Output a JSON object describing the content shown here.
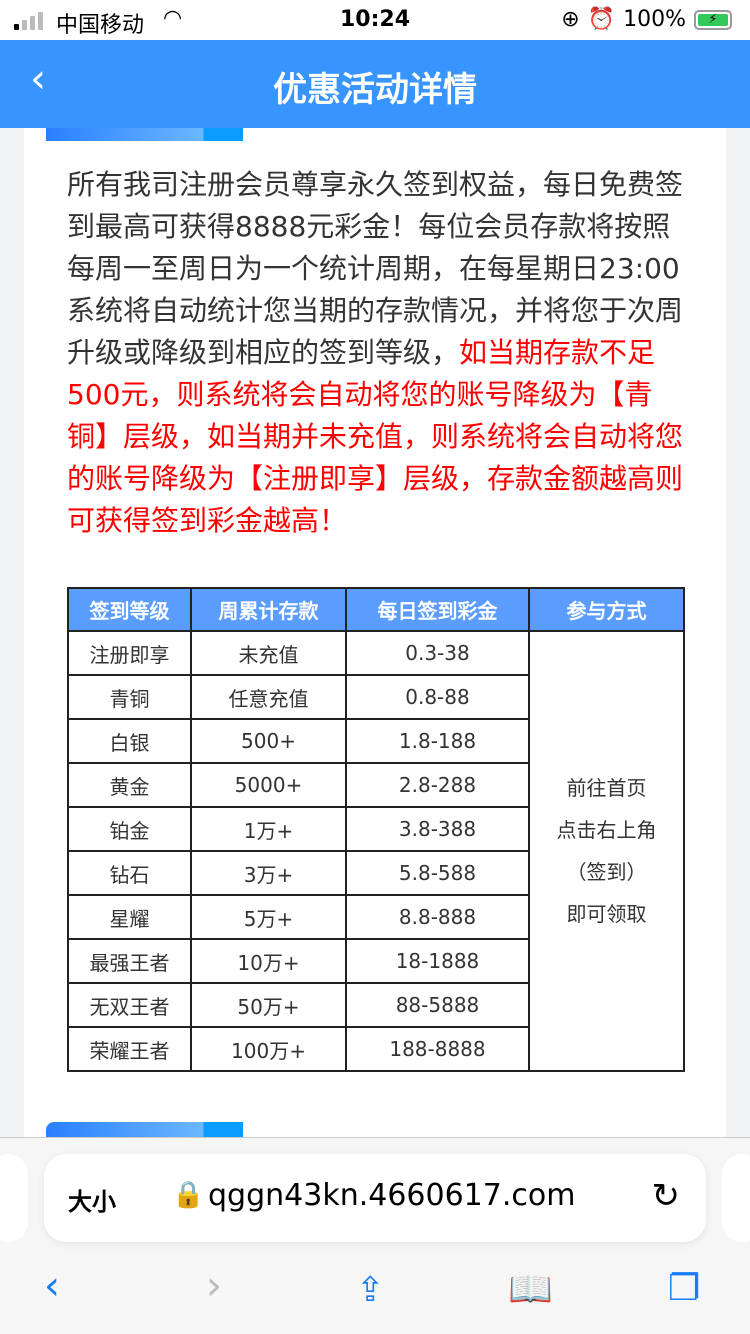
{
  "status": {
    "carrier": "中国移动",
    "time": "10:24",
    "battery": "100%"
  },
  "nav": {
    "title": "优惠活动详情"
  },
  "content": {
    "text_normal": "所有我司注册会员尊享永久签到权益，每日免费签到最高可获得8888元彩金！每位会员存款将按照每周一至周日为一个统计周期，在每星期日23:00系统将自动统计您当期的存款情况，并将您于次周升级或降级到相应的签到等级，",
    "text_red": "如当期存款不足500元，则系统将会自动将您的账号降级为【青铜】层级，如当期并未充值，则系统将会自动将您的账号降级为【注册即享】层级，存款金额越高则可获得签到彩金越高！"
  },
  "table": {
    "headers": [
      "签到等级",
      "周累计存款",
      "每日签到彩金",
      "参与方式"
    ],
    "rows": [
      [
        "注册即享",
        "未充值",
        "0.3-38"
      ],
      [
        "青铜",
        "任意充值",
        "0.8-88"
      ],
      [
        "白银",
        "500+",
        "1.8-188"
      ],
      [
        "黄金",
        "5000+",
        "2.8-288"
      ],
      [
        "铂金",
        "1万+",
        "3.8-388"
      ],
      [
        "钻石",
        "3万+",
        "5.8-588"
      ],
      [
        "星耀",
        "5万+",
        "8.8-888"
      ],
      [
        "最强王者",
        "10万+",
        "18-1888"
      ],
      [
        "无双王者",
        "50万+",
        "88-5888"
      ],
      [
        "荣耀王者",
        "100万+",
        "188-8888"
      ]
    ],
    "method": [
      "前往首页",
      "点击右上角",
      "（签到）",
      "即可领取"
    ],
    "header_color": "#5b9cff"
  },
  "browser": {
    "text_size": "大小",
    "url": "qggn43kn.4660617.com"
  },
  "colors": {
    "nav": "#3895ff",
    "accent_red": "#ff0000"
  }
}
